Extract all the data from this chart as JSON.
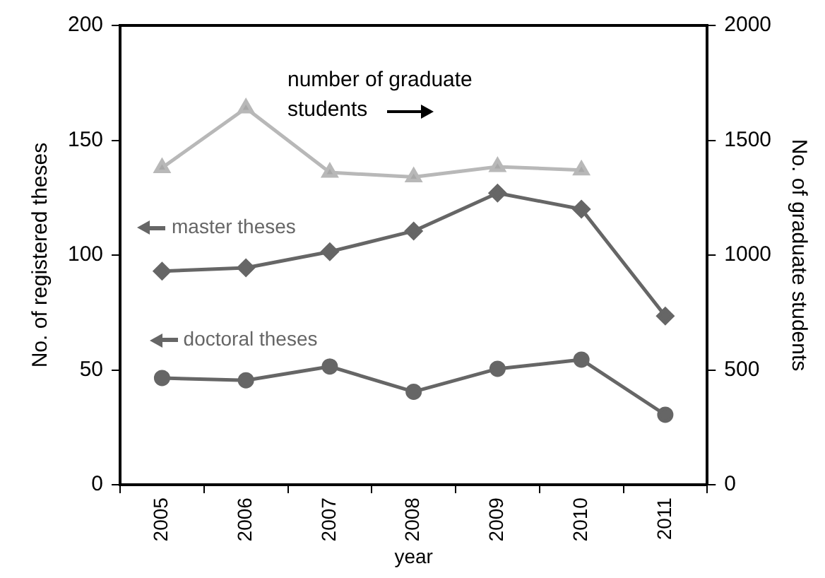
{
  "chart_data": {
    "type": "line",
    "xlabel": "year",
    "ylabel": "No. of registered theses",
    "y2label": "No. of graduate students",
    "categories": [
      "2005",
      "2006",
      "2007",
      "2008",
      "2009",
      "2010",
      "2011"
    ],
    "series": [
      {
        "color": "#b8b8b8",
        "marker": "triangle",
        "axis": "y2",
        "values": [
          1380,
          1640,
          1360,
          1340,
          1385,
          1370,
          null
        ]
      },
      {
        "color": "#666666",
        "marker": "diamond",
        "values": [
          93,
          94.5,
          101.5,
          110.5,
          127,
          120,
          73.5
        ]
      },
      {
        "color": "#666666",
        "marker": "circle",
        "values": [
          46.5,
          45.5,
          51.5,
          40.5,
          50.5,
          54.5,
          30.5
        ]
      }
    ],
    "ylim": [
      0,
      200
    ],
    "yticks": [
      0,
      50,
      100,
      150,
      200
    ],
    "y2lim": [
      0,
      2000
    ],
    "y2ticks": [
      0,
      500,
      1000,
      1500,
      2000
    ],
    "annotations": [
      "number of graduate students",
      "master theses",
      "doctoral theses"
    ],
    "grid": false,
    "legend": false,
    "line_style": "solid"
  }
}
